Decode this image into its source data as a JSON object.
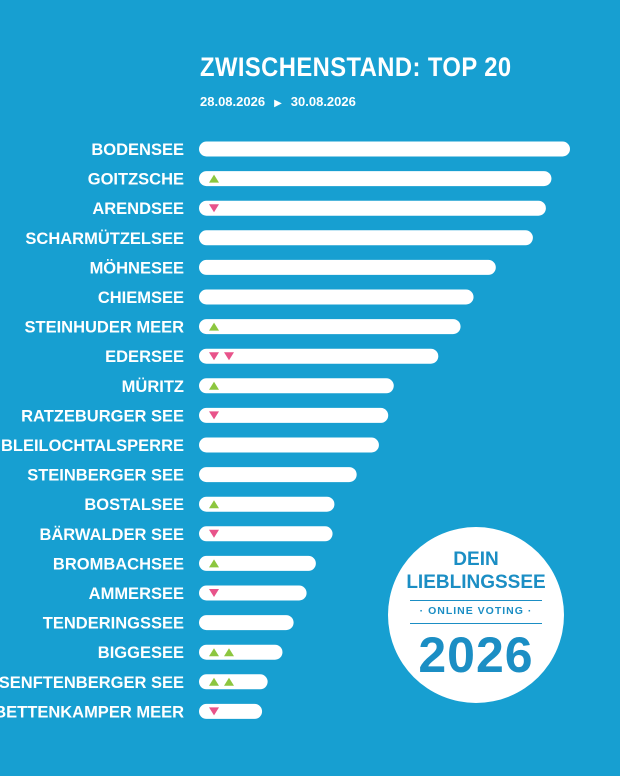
{
  "header": {
    "title": "ZWISCHENSTAND: TOP 20",
    "date_start": "28.08.2026",
    "date_arrow": "▶",
    "date_end": "30.08.2026"
  },
  "badge": {
    "line1": "DEIN",
    "line2": "LIEBLINGSSEE",
    "line3": "· ONLINE VOTING ·",
    "line4": "2026"
  },
  "colors": {
    "background": "#179fd1",
    "bar": "#ffffff",
    "trend_up": "#8cc63f",
    "trend_down": "#e8538a",
    "badge_text": "#1b8ec4"
  },
  "chart_data": {
    "type": "bar",
    "orientation": "horizontal",
    "categories": [
      "BODENSEE",
      "GOITZSCHE",
      "ARENDSEE",
      "SCHARMÜTZELSEE",
      "MÖHNESEE",
      "CHIEMSEE",
      "STEINHUDER MEER",
      "EDERSEE",
      "MÜRITZ",
      "RATZEBURGER SEE",
      "BLEILOCHTALSPERRE",
      "STEINBERGER SEE",
      "BOSTALSEE",
      "BÄRWALDER SEE",
      "BROMBACHSEE",
      "AMMERSEE",
      "TENDERINGSSEE",
      "BIGGESEE",
      "SENFTENBERGER SEE",
      "BETTENKAMPER MEER"
    ],
    "values": [
      100,
      95,
      93.5,
      90,
      80,
      74,
      70.5,
      64.5,
      52.5,
      51,
      48.5,
      42.5,
      36.5,
      36,
      31.5,
      29,
      25.5,
      22.5,
      18.5,
      17
    ],
    "value_unit": "relative bar length (no axis printed)",
    "trend": [
      0,
      1,
      -1,
      0,
      0,
      0,
      1,
      -2,
      1,
      -1,
      0,
      0,
      1,
      -1,
      1,
      -1,
      0,
      2,
      2,
      -1
    ],
    "trend_legend": "positive = green up triangles, negative = pink down triangles",
    "xlim": [
      0,
      100
    ],
    "grid": false,
    "legend": "none",
    "title": "ZWISCHENSTAND: TOP 20"
  }
}
